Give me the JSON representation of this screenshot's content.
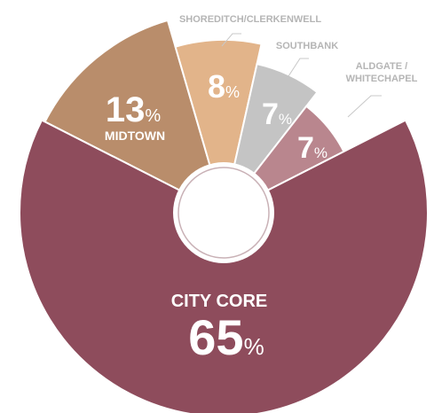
{
  "chart_data": {
    "type": "pie",
    "categories": [
      "MIDTOWN",
      "SHOREDITCH/CLERKENWELL",
      "SOUTHBANK",
      "ALDGATE / WHITECHAPEL",
      "CITY CORE"
    ],
    "values": [
      13,
      8,
      7,
      7,
      65
    ],
    "unit": "%",
    "colors": [
      "#b98d6b",
      "#e2b48a",
      "#c4c4c4",
      "#b9868e",
      "#8e4c5c"
    ]
  }
}
